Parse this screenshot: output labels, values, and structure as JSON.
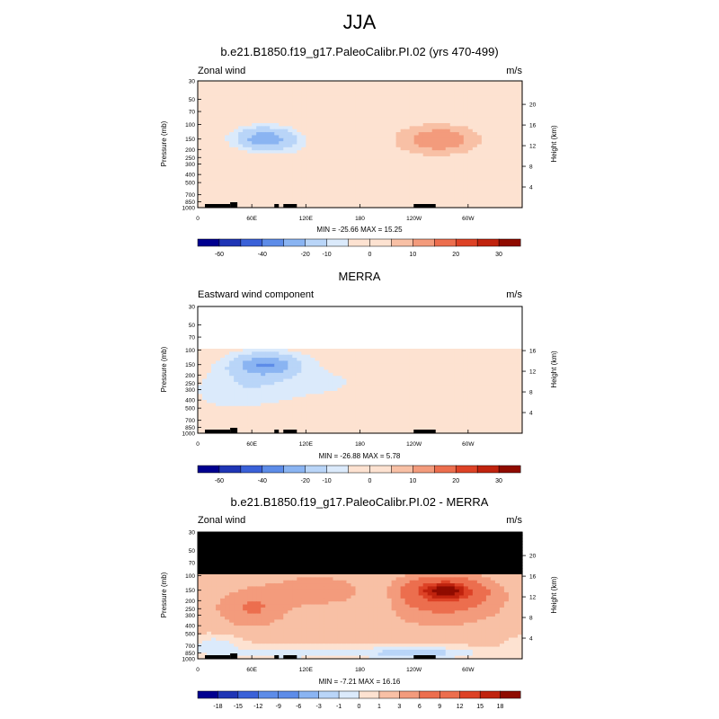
{
  "page": {
    "title": "JJA"
  },
  "colors": {
    "div12": [
      "#00008f",
      "#1f35b5",
      "#3a61d8",
      "#5d8ce8",
      "#8ab4f2",
      "#b9d5f8",
      "#dbeafb",
      "#fde2d1",
      "#f8c0a5",
      "#f39b7c",
      "#ec6e4e",
      "#dd4226",
      "#c0230e",
      "#8f0b00"
    ],
    "land": "#000000",
    "missing": "#000000"
  },
  "chart_data": [
    {
      "id": "model",
      "type": "heatmap",
      "title": "b.e21.B1850.f19_g17.PaleoCalibr.PI.02 (yrs 470-499)",
      "left_label": "Zonal wind",
      "units": "m/s",
      "ylabel": "Pressure (mb)",
      "ylabel_right": "Height (km)",
      "xlabel": "",
      "x_ticks": [
        "0",
        "60E",
        "120E",
        "180",
        "120W",
        "60W"
      ],
      "x_tick_values": [
        0,
        60,
        120,
        180,
        240,
        300
      ],
      "xlim": [
        0,
        360
      ],
      "p_ticks": [
        "30",
        "50",
        "70",
        "100",
        "150",
        "200",
        "250",
        "300",
        "400",
        "500",
        "700",
        "850",
        "1000"
      ],
      "p_tick_values": [
        30,
        50,
        70,
        100,
        150,
        200,
        250,
        300,
        400,
        500,
        700,
        850,
        1000
      ],
      "ylim": [
        1000,
        30
      ],
      "h_ticks": [
        "4",
        "8",
        "12",
        "16",
        "20"
      ],
      "h_tick_values": [
        4,
        8,
        12,
        16,
        20
      ],
      "min": -25.66,
      "max": 15.25,
      "stats_text": "MIN = -25.66   MAX =  15.25",
      "top_pressure": 30,
      "levels": [
        -70,
        -60,
        -50,
        -40,
        -30,
        -20,
        -10,
        -5,
        0,
        5,
        10,
        15,
        20,
        25,
        30,
        35
      ],
      "colorbar_labels": [
        "-60",
        "-40",
        "-20",
        "-10",
        "0",
        "10",
        "20",
        "30"
      ],
      "colorbar_label_boundaries": [
        1,
        3,
        5,
        6,
        8,
        10,
        12,
        14
      ],
      "features": [
        {
          "lon": 75,
          "p": 150,
          "amp": -25.7,
          "slon": 22,
          "sp": 0.22
        },
        {
          "lon": 200,
          "p": 450,
          "amp": -4,
          "slon": 120,
          "sp": 0.9
        },
        {
          "lon": 270,
          "p": 150,
          "amp": 15.3,
          "slon": 35,
          "sp": 0.3
        },
        {
          "lon": 230,
          "p": 250,
          "amp": 5,
          "slon": 50,
          "sp": 0.45
        },
        {
          "lon": 60,
          "p": 500,
          "amp": 6,
          "slon": 28,
          "sp": 0.6
        },
        {
          "lon": 180,
          "p": 60,
          "amp": 4,
          "slon": 70,
          "sp": 0.5
        },
        {
          "lon": 330,
          "p": 500,
          "amp": 4,
          "slon": 40,
          "sp": 0.6
        }
      ],
      "base": -1.5
    },
    {
      "id": "obs",
      "type": "heatmap",
      "title": "MERRA",
      "left_label": "Eastward wind component",
      "units": "m/s",
      "ylabel": "Pressure (mb)",
      "ylabel_right": "Height (km)",
      "xlabel": "",
      "x_ticks": [
        "0",
        "60E",
        "120E",
        "180",
        "120W",
        "60W"
      ],
      "x_tick_values": [
        0,
        60,
        120,
        180,
        240,
        300
      ],
      "xlim": [
        0,
        360
      ],
      "p_ticks": [
        "30",
        "50",
        "70",
        "100",
        "150",
        "200",
        "250",
        "300",
        "400",
        "500",
        "700",
        "850",
        "1000"
      ],
      "p_tick_values": [
        30,
        50,
        70,
        100,
        150,
        200,
        250,
        300,
        400,
        500,
        700,
        850,
        1000
      ],
      "ylim": [
        1000,
        30
      ],
      "h_ticks": [
        "4",
        "8",
        "12",
        "16"
      ],
      "h_tick_values": [
        4,
        8,
        12,
        16
      ],
      "min": -26.88,
      "max": 5.78,
      "stats_text": "MIN = -26.88   MAX =  5.78",
      "top_pressure": 100,
      "levels": [
        -70,
        -60,
        -50,
        -40,
        -30,
        -20,
        -10,
        -5,
        0,
        5,
        10,
        15,
        20,
        25,
        30,
        35
      ],
      "colorbar_labels": [
        "-60",
        "-40",
        "-20",
        "-10",
        "0",
        "10",
        "20",
        "30"
      ],
      "colorbar_label_boundaries": [
        1,
        3,
        5,
        6,
        8,
        10,
        12,
        14
      ],
      "features": [
        {
          "lon": 75,
          "p": 150,
          "amp": -26.9,
          "slon": 24,
          "sp": 0.22
        },
        {
          "lon": 50,
          "p": 300,
          "amp": -8,
          "slon": 40,
          "sp": 0.5
        },
        {
          "lon": 150,
          "p": 250,
          "amp": -4,
          "slon": 60,
          "sp": 0.6
        },
        {
          "lon": 270,
          "p": 150,
          "amp": 5.8,
          "slon": 30,
          "sp": 0.25
        },
        {
          "lon": 215,
          "p": 130,
          "amp": 3,
          "slon": 15,
          "sp": 0.2
        },
        {
          "lon": 90,
          "p": 650,
          "amp": 4,
          "slon": 40,
          "sp": 0.35
        }
      ],
      "base": -1.0
    },
    {
      "id": "diff",
      "type": "heatmap",
      "title": "b.e21.B1850.f19_g17.PaleoCalibr.PI.02 - MERRA",
      "left_label": "Zonal wind",
      "units": "m/s",
      "ylabel": "Pressure (mb)",
      "ylabel_right": "Height (km)",
      "xlabel": "",
      "x_ticks": [
        "0",
        "60E",
        "120E",
        "180",
        "120W",
        "60W"
      ],
      "x_tick_values": [
        0,
        60,
        120,
        180,
        240,
        300
      ],
      "xlim": [
        0,
        360
      ],
      "p_ticks": [
        "30",
        "50",
        "70",
        "100",
        "150",
        "200",
        "250",
        "300",
        "400",
        "500",
        "700",
        "850",
        "1000"
      ],
      "p_tick_values": [
        30,
        50,
        70,
        100,
        150,
        200,
        250,
        300,
        400,
        500,
        700,
        850,
        1000
      ],
      "ylim": [
        1000,
        30
      ],
      "h_ticks": [
        "4",
        "8",
        "12",
        "16",
        "20"
      ],
      "h_tick_values": [
        4,
        8,
        12,
        16,
        20
      ],
      "min": -7.21,
      "max": 16.16,
      "stats_text": "MIN = -7.21   MAX = 16.16",
      "missing_above": 100,
      "levels": [
        -21,
        -18,
        -15,
        -12,
        -9,
        -6,
        -3,
        -1,
        0,
        1,
        3,
        6,
        9,
        12,
        15,
        18,
        21
      ],
      "colorbar_labels": [
        "-18",
        "-15",
        "-12",
        "-9",
        "-6",
        "-3",
        "-1",
        "0",
        "1",
        "3",
        "6",
        "9",
        "12",
        "15",
        "18"
      ],
      "colorbar_label_boundaries": [
        1,
        2,
        3,
        4,
        5,
        6,
        7,
        8,
        9,
        10,
        11,
        12,
        13,
        14,
        15
      ],
      "features": [
        {
          "lon": 275,
          "p": 150,
          "amp": 14,
          "slon": 25,
          "sp": 0.22
        },
        {
          "lon": 270,
          "p": 200,
          "amp": 6,
          "slon": 45,
          "sp": 0.45
        },
        {
          "lon": 60,
          "p": 250,
          "amp": 5,
          "slon": 25,
          "sp": 0.35
        },
        {
          "lon": 130,
          "p": 150,
          "amp": 3,
          "slon": 40,
          "sp": 0.35
        },
        {
          "lon": 200,
          "p": 200,
          "amp": -2,
          "slon": 15,
          "sp": 0.4
        },
        {
          "lon": 240,
          "p": 850,
          "amp": -3,
          "slon": 50,
          "sp": 0.12
        },
        {
          "lon": 100,
          "p": 850,
          "amp": -2,
          "slon": 40,
          "sp": 0.12
        },
        {
          "lon": 20,
          "p": 700,
          "amp": -2,
          "slon": 20,
          "sp": 0.2
        }
      ],
      "base": 1.2
    }
  ],
  "land_segments": [
    [
      8,
      36
    ],
    [
      36,
      44
    ],
    [
      85,
      90
    ],
    [
      95,
      110
    ],
    [
      240,
      264
    ]
  ]
}
